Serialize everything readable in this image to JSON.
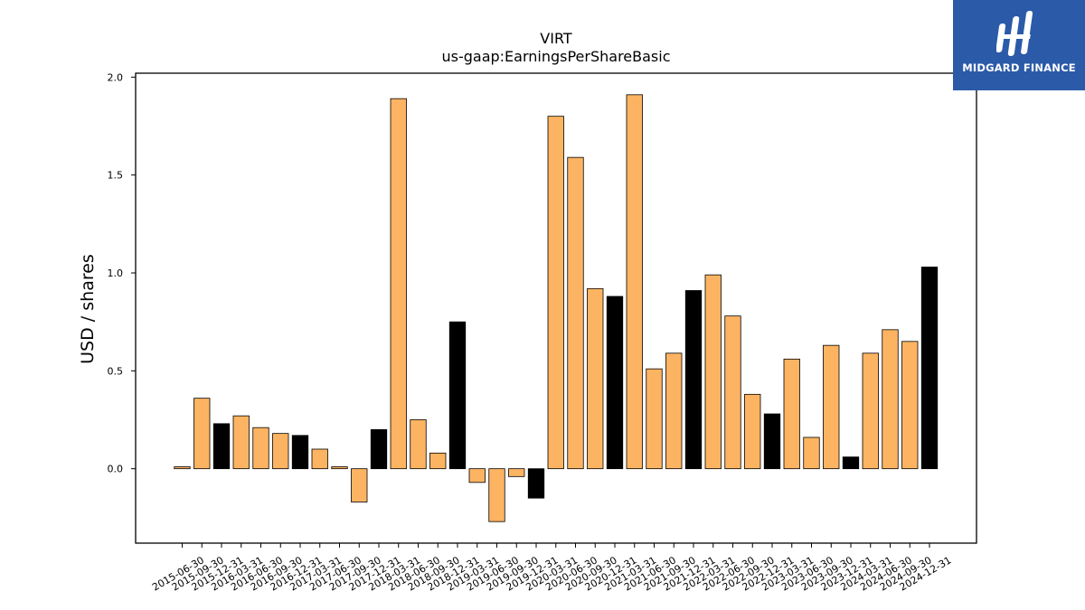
{
  "logo": {
    "text": "MIDGARD FINANCE",
    "bg_color": "#2b5aa8"
  },
  "chart_data": {
    "type": "bar",
    "title": "VIRT",
    "subtitle": "us-gaap:EarningsPerShareBasic",
    "xlabel": "",
    "ylabel": "USD / shares",
    "ylim": [
      -0.38,
      2.02
    ],
    "yticks": [
      0.0,
      0.5,
      1.0,
      1.5,
      2.0
    ],
    "ytick_labels": [
      "0.0",
      "0.5",
      "1.0",
      "1.5",
      "2.0"
    ],
    "grid": false,
    "colors": {
      "quarter": "#fdb462",
      "annual": "#000000",
      "edge": "#000000"
    },
    "categories": [
      "2015-06-30",
      "2015-09-30",
      "2015-12-31",
      "2016-03-31",
      "2016-06-30",
      "2016-09-30",
      "2016-12-31",
      "2017-03-31",
      "2017-06-30",
      "2017-09-30",
      "2017-12-31",
      "2018-03-31",
      "2018-06-30",
      "2018-09-30",
      "2018-12-31",
      "2019-03-31",
      "2019-06-30",
      "2019-09-30",
      "2019-12-31",
      "2020-03-31",
      "2020-06-30",
      "2020-09-30",
      "2020-12-31",
      "2021-03-31",
      "2021-06-30",
      "2021-09-30",
      "2021-12-31",
      "2022-03-31",
      "2022-06-30",
      "2022-09-30",
      "2022-12-31",
      "2023-03-31",
      "2023-06-30",
      "2023-09-30",
      "2023-12-31",
      "2024-03-31",
      "2024-06-30",
      "2024-09-30",
      "2024-12-31"
    ],
    "values": [
      0.01,
      0.36,
      0.23,
      0.27,
      0.21,
      0.18,
      0.17,
      0.1,
      0.01,
      -0.17,
      0.2,
      1.89,
      0.25,
      0.08,
      0.75,
      -0.07,
      -0.27,
      -0.04,
      -0.15,
      1.8,
      1.59,
      0.92,
      0.88,
      1.91,
      0.51,
      0.59,
      0.91,
      0.99,
      0.78,
      0.38,
      0.28,
      0.56,
      0.16,
      0.63,
      0.06,
      0.59,
      0.71,
      0.65,
      1.03
    ],
    "annual": [
      false,
      false,
      true,
      false,
      false,
      false,
      true,
      false,
      false,
      false,
      true,
      false,
      false,
      false,
      true,
      false,
      false,
      false,
      true,
      false,
      false,
      false,
      true,
      false,
      false,
      false,
      true,
      false,
      false,
      false,
      true,
      false,
      false,
      false,
      true,
      false,
      false,
      false,
      true
    ]
  }
}
